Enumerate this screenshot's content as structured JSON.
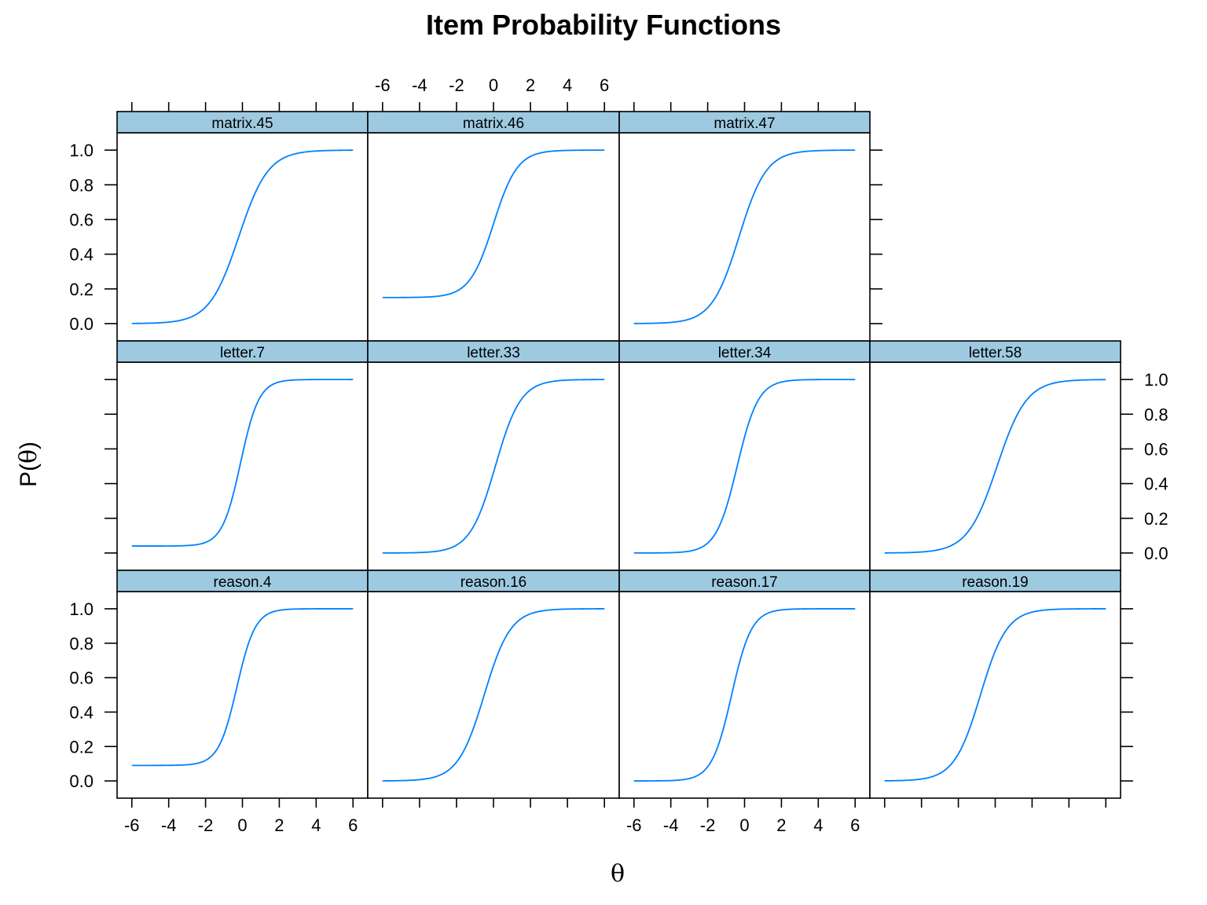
{
  "chart_data": {
    "type": "line",
    "title": "Item Probability Functions",
    "xlabel": "θ",
    "ylabel": {
      "prefix": "P(",
      "symbol": "θ",
      "suffix": ")"
    },
    "xlim": [
      -6.8,
      6.8
    ],
    "ylim": [
      -0.1,
      1.1
    ],
    "x_ticks": [
      -6,
      -4,
      -2,
      0,
      2,
      4,
      6
    ],
    "y_ticks": [
      0.0,
      0.2,
      0.4,
      0.6,
      0.8,
      1.0
    ],
    "x_tick_labels": [
      "-6",
      "-4",
      "-2",
      "0",
      "2",
      "4",
      "6"
    ],
    "y_tick_labels": [
      "0.0",
      "0.2",
      "0.4",
      "0.6",
      "0.8",
      "1.0"
    ],
    "line_color": "#0080ff",
    "strip_color": "#9ecae1",
    "grid": false,
    "layout": "4 columns x 3 rows (lattice, top row has 3 panels)",
    "model": "3PL logistic: c + (1 - c) / (1 + exp(-a(θ - b)))",
    "panels": [
      {
        "name": "matrix.45",
        "row": 0,
        "col": 0,
        "a": 1.25,
        "b": -0.2,
        "c": 0.0
      },
      {
        "name": "matrix.46",
        "row": 0,
        "col": 1,
        "a": 1.55,
        "b": 0.0,
        "c": 0.15
      },
      {
        "name": "matrix.47",
        "row": 0,
        "col": 2,
        "a": 1.35,
        "b": -0.3,
        "c": 0.0
      },
      {
        "name": "letter.7",
        "row": 1,
        "col": 0,
        "a": 2.0,
        "b": -0.1,
        "c": 0.04
      },
      {
        "name": "letter.33",
        "row": 1,
        "col": 1,
        "a": 1.45,
        "b": 0.1,
        "c": 0.0
      },
      {
        "name": "letter.34",
        "row": 1,
        "col": 2,
        "a": 1.75,
        "b": -0.4,
        "c": 0.0
      },
      {
        "name": "letter.58",
        "row": 1,
        "col": 3,
        "a": 1.25,
        "b": 0.1,
        "c": 0.0
      },
      {
        "name": "reason.4",
        "row": 2,
        "col": 0,
        "a": 2.0,
        "b": -0.3,
        "c": 0.09
      },
      {
        "name": "reason.16",
        "row": 2,
        "col": 1,
        "a": 1.4,
        "b": -0.5,
        "c": 0.0
      },
      {
        "name": "reason.17",
        "row": 2,
        "col": 2,
        "a": 1.85,
        "b": -0.7,
        "c": 0.0
      },
      {
        "name": "reason.19",
        "row": 2,
        "col": 3,
        "a": 1.4,
        "b": -0.8,
        "c": 0.0
      }
    ]
  }
}
